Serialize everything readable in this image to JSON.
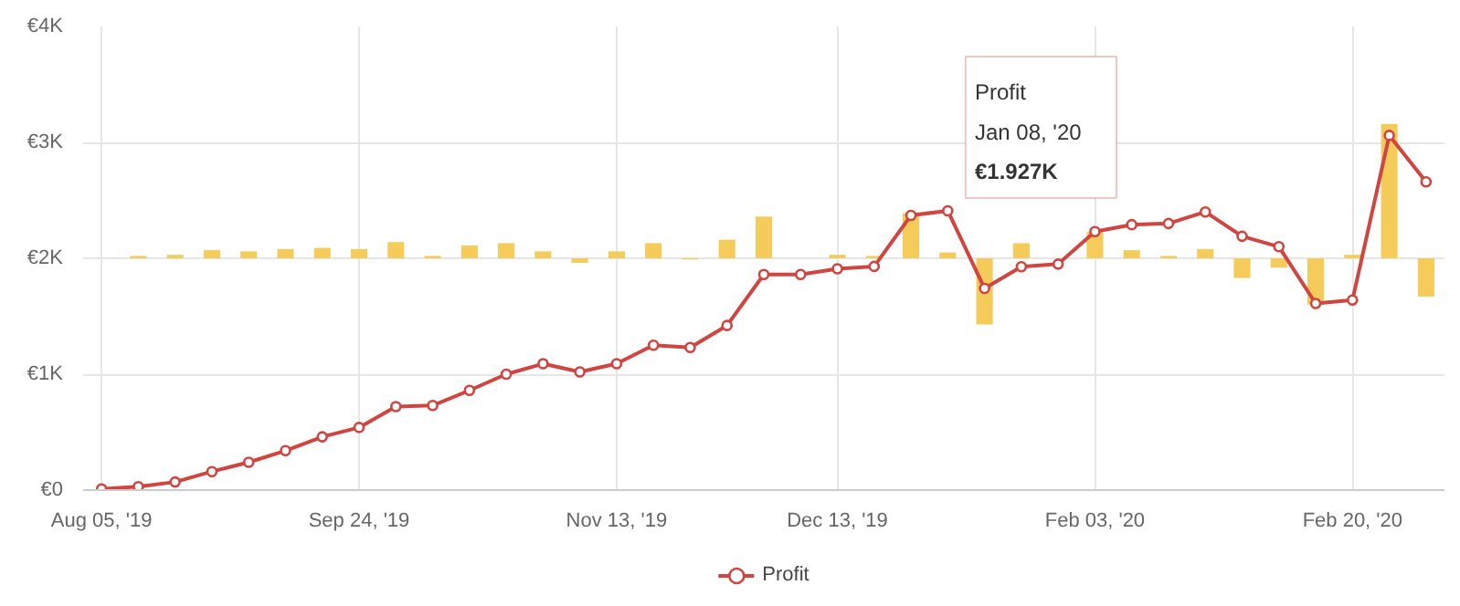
{
  "chart_data": {
    "type": "line",
    "categories": [
      "Aug 05, '19",
      null,
      null,
      null,
      null,
      null,
      null,
      "Sep 24, '19",
      null,
      null,
      null,
      null,
      null,
      null,
      "Nov 13, '19",
      null,
      null,
      null,
      null,
      null,
      "Dec 13, '19",
      null,
      null,
      null,
      null,
      null,
      null,
      "Feb 03, '20",
      null,
      null,
      null,
      null,
      null,
      null,
      "Feb 20, '20",
      null,
      null
    ],
    "series": [
      {
        "type": "bar",
        "color": "#f5cc5a",
        "base": [
          null,
          2000,
          2000,
          2000,
          2000,
          2000,
          2000,
          2000,
          2000,
          2000,
          2000,
          2000,
          2000,
          2000,
          2000,
          2000,
          2000,
          2000,
          2000,
          null,
          2000,
          2000,
          2000,
          2000,
          2000,
          2000,
          null,
          2000,
          2000,
          2000,
          2000,
          2000,
          2000,
          2000,
          2000,
          2000,
          2000
        ],
        "values": [
          null,
          20,
          30,
          70,
          60,
          80,
          90,
          80,
          140,
          20,
          110,
          130,
          60,
          -40,
          60,
          130,
          -10,
          160,
          360,
          null,
          30,
          20,
          390,
          50,
          -570,
          130,
          null,
          230,
          70,
          20,
          80,
          -170,
          -80,
          -400,
          30,
          1160,
          -330
        ]
      },
      {
        "name": "Profit",
        "color": "#d0453f",
        "values": [
          10,
          30,
          70,
          160,
          240,
          340,
          460,
          540,
          720,
          730,
          860,
          1000,
          1090,
          1020,
          1090,
          1250,
          1230,
          1420,
          1860,
          1860,
          1910,
          1930,
          2370,
          2410,
          1740,
          1927,
          1950,
          2230,
          2290,
          2300,
          2400,
          2190,
          2100,
          1610,
          1640,
          3060,
          2660
        ]
      }
    ],
    "ylim": [
      0,
      4000
    ],
    "yticks": [
      {
        "value": 0,
        "label": "€0"
      },
      {
        "value": 1000,
        "label": "€1K"
      },
      {
        "value": 2000,
        "label": "€2K"
      },
      {
        "value": 3000,
        "label": "€3K"
      },
      {
        "value": 4000,
        "label": "€4K"
      }
    ],
    "grid": true,
    "legend": "bottom",
    "marker": "circle",
    "line_style": "solid",
    "annotations": [
      "Profit\nJan 08, '20\n€1.927K"
    ]
  }
}
